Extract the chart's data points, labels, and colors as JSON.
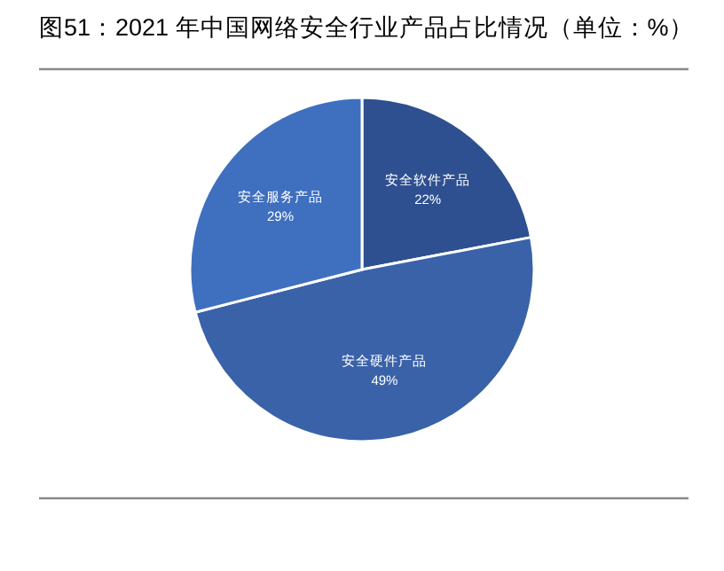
{
  "chart_data": {
    "type": "pie",
    "title": "图51：2021 年中国网络安全行业产品占比情况（单位：%）",
    "categories": [
      "安全软件产品",
      "安全硬件产品",
      "安全服务产品"
    ],
    "values": [
      22,
      49,
      29
    ],
    "colors": [
      "#2e5090",
      "#3a62a8",
      "#3f6fbf"
    ],
    "value_labels": [
      "22%",
      "49%",
      "29%"
    ]
  }
}
